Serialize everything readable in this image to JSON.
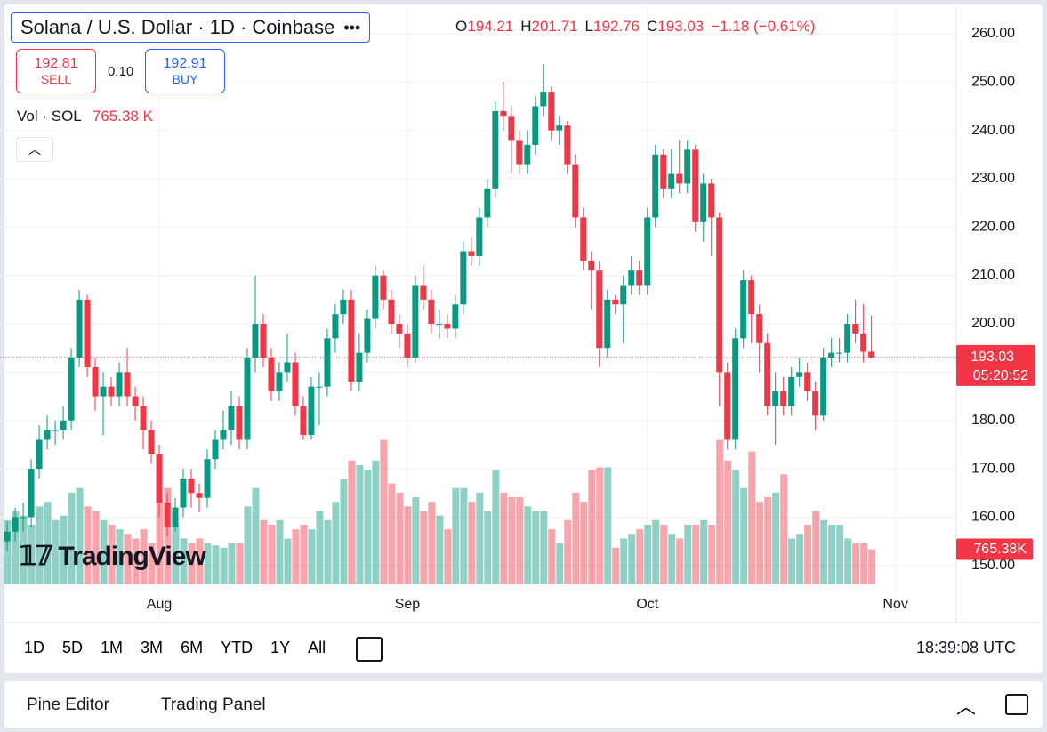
{
  "header": {
    "title": "Solana / U.S. Dollar · 1D · Coinbase",
    "ohlc_labels": [
      "O",
      "H",
      "L",
      "C"
    ],
    "change": "−1.18 (−0.61%)"
  },
  "trade": {
    "sell_price": "192.81",
    "sell": "SELL",
    "spread": "0.10",
    "buy_price": "192.91",
    "buy": "BUY"
  },
  "volume_title": "Vol · SOL",
  "countdown": "05:20:52",
  "logo": "TradingView",
  "toolbar": {
    "ranges": [
      "1D",
      "5D",
      "1M",
      "3M",
      "6M",
      "YTD",
      "1Y",
      "All"
    ],
    "time": "18:39:08 UTC"
  },
  "bottom_panel": {
    "tabs": [
      "Pine Editor",
      "Trading Panel"
    ]
  },
  "chart_data": {
    "type": "candlestick",
    "up_color": "#089981",
    "down_color": "#f23645",
    "grid": true,
    "open": [
      155,
      157,
      160,
      160,
      170,
      176,
      178,
      178,
      180,
      193,
      205,
      191,
      185,
      187,
      185,
      190,
      185,
      183,
      178,
      173,
      163,
      158,
      162,
      168,
      165,
      164,
      172,
      176,
      178,
      183,
      176,
      193,
      200,
      193,
      186,
      190,
      192,
      183,
      177,
      187,
      187,
      197,
      202,
      205,
      188,
      194,
      201,
      210,
      205,
      200,
      198,
      193,
      208,
      205,
      200,
      200,
      199,
      204,
      215,
      214,
      222,
      228,
      244,
      243,
      238,
      233,
      237,
      245,
      248,
      240,
      241,
      233,
      222,
      213,
      211,
      195,
      205,
      204,
      208,
      211,
      208,
      222,
      235,
      228,
      231,
      229,
      236,
      221,
      229,
      222,
      190,
      176,
      197,
      209,
      202,
      196,
      183,
      186,
      183,
      189,
      190,
      186,
      181,
      193,
      194,
      194,
      200,
      198,
      194.21
    ],
    "high": [
      159,
      162,
      163,
      172,
      179,
      181,
      180,
      183,
      195,
      207,
      206,
      193,
      190,
      189,
      192,
      195,
      187,
      185,
      180,
      175,
      165,
      164,
      170,
      170,
      167,
      174,
      178,
      182,
      186,
      185,
      195,
      210,
      202,
      195,
      192,
      198,
      194,
      185,
      189,
      190,
      199,
      204,
      207,
      207,
      198,
      203,
      212,
      211,
      207,
      202,
      200,
      210,
      212,
      207,
      203,
      202,
      206,
      217,
      218,
      224,
      230,
      246,
      250,
      245,
      240,
      240,
      247,
      253.7,
      249,
      243,
      242,
      235,
      224,
      215,
      213,
      207,
      206,
      210,
      214,
      213,
      224,
      237,
      236,
      236,
      238,
      238,
      237,
      231,
      230,
      223,
      192,
      199,
      211,
      210,
      204,
      198,
      190,
      189,
      191,
      193,
      192,
      188,
      195,
      197,
      197,
      202,
      205,
      204,
      201.71
    ],
    "low": [
      153,
      155,
      157,
      158,
      168,
      174,
      175,
      176,
      178,
      191,
      189,
      182,
      177,
      183,
      183,
      183,
      180,
      174,
      171,
      160,
      156,
      157,
      160,
      162,
      161,
      162,
      170,
      174,
      175,
      174,
      174,
      190,
      191,
      184,
      184,
      188,
      181,
      176,
      176,
      179,
      185,
      194,
      200,
      186,
      186,
      192,
      199,
      203,
      198,
      195,
      191,
      192,
      203,
      198,
      197,
      197,
      197,
      202,
      212,
      212,
      220,
      226,
      240,
      231,
      231,
      231,
      235,
      243,
      238,
      237,
      231,
      220,
      211,
      203,
      191,
      193,
      202,
      196,
      206,
      206,
      206,
      220,
      226,
      226,
      227,
      227,
      219,
      217,
      214,
      183,
      174,
      174,
      195,
      196,
      190,
      181,
      175,
      181,
      181,
      187,
      184,
      178,
      180,
      191,
      192,
      192,
      196,
      192,
      192.76
    ],
    "close": [
      157,
      160,
      160,
      170,
      176,
      178,
      178,
      180,
      193,
      205,
      191,
      185,
      187,
      185,
      190,
      185,
      183,
      178,
      173,
      163,
      158,
      162,
      168,
      165,
      164,
      172,
      176,
      178,
      183,
      176,
      193,
      200,
      193,
      186,
      190,
      192,
      183,
      177,
      187,
      187,
      197,
      202,
      205,
      188,
      194,
      201,
      210,
      205,
      200,
      198,
      193,
      208,
      205,
      200,
      200,
      199,
      204,
      215,
      214,
      222,
      228,
      244,
      243,
      238,
      233,
      237,
      245,
      248,
      240,
      241,
      233,
      222,
      213,
      211,
      195,
      205,
      204,
      208,
      211,
      208,
      222,
      235,
      228,
      231,
      229,
      236,
      221,
      229,
      222,
      190,
      176,
      197,
      209,
      202,
      196,
      183,
      186,
      183,
      189,
      190,
      186,
      181,
      193,
      194,
      194,
      200,
      198,
      194.21,
      193.03
    ],
    "volume": [
      1400,
      1600,
      1500,
      1300,
      1700,
      1800,
      1400,
      1500,
      2000,
      2100,
      1700,
      1600,
      1400,
      1300,
      1200,
      1100,
      1000,
      1200,
      900,
      1800,
      2100,
      1300,
      1000,
      900,
      1000,
      900,
      850,
      800,
      900,
      900,
      1700,
      2100,
      1400,
      1300,
      1400,
      1000,
      1200,
      1300,
      1200,
      1600,
      1400,
      1800,
      2300,
      2700,
      2600,
      2500,
      2700,
      3150,
      2200,
      2000,
      1700,
      1900,
      1600,
      1800,
      1500,
      1200,
      2100,
      2100,
      1800,
      2000,
      1600,
      2500,
      2000,
      1900,
      1900,
      1700,
      1600,
      1600,
      1200,
      900,
      1400,
      2000,
      1800,
      2500,
      2550,
      2550,
      800,
      1000,
      1100,
      1200,
      1300,
      1400,
      1300,
      1100,
      1000,
      1300,
      1300,
      1400,
      1300,
      3150,
      2700,
      2500,
      2100,
      2900,
      1800,
      1900,
      2000,
      2400,
      1000,
      1100,
      1300,
      1600,
      1400,
      1300,
      1300,
      1000,
      900,
      900,
      765.38
    ],
    "volume_label": "765.38 K",
    "volume_axis_label": "765.38K",
    "volume_lim": [
      0,
      3200
    ],
    "xlim": [
      -0.9,
      118.6
    ],
    "xticks": [
      {
        "value": 19,
        "label": "Aug"
      },
      {
        "value": 50,
        "label": "Sep"
      },
      {
        "value": 80,
        "label": "Oct"
      },
      {
        "value": 111,
        "label": "Nov"
      }
    ],
    "ylim": [
      146.1,
      265.5
    ],
    "yticks": [
      {
        "value": 150,
        "label": "150.00"
      },
      {
        "value": 160,
        "label": "160.00"
      },
      {
        "value": 170,
        "label": "170.00"
      },
      {
        "value": 180,
        "label": "180.00"
      },
      {
        "value": 190,
        "label": "190.00"
      },
      {
        "value": 200,
        "label": "200.00"
      },
      {
        "value": 210,
        "label": "210.00"
      },
      {
        "value": 220,
        "label": "220.00"
      },
      {
        "value": 230,
        "label": "230.00"
      },
      {
        "value": 240,
        "label": "240.00"
      },
      {
        "value": 250,
        "label": "250.00"
      },
      {
        "value": 260,
        "label": "260.00"
      }
    ]
  }
}
